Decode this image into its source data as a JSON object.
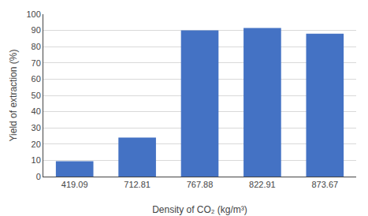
{
  "chart_data": {
    "type": "bar",
    "categories": [
      "419.09",
      "712.81",
      "767.88",
      "822.91",
      "873.67"
    ],
    "values": [
      9.5,
      24,
      90,
      91.5,
      88
    ],
    "color": "#4472C4",
    "xlabel": "Density of CO₂ (kg/m³)",
    "ylabel": "Yield of extraction (%)",
    "ylim": [
      0,
      100
    ],
    "yticks": [
      0,
      10,
      20,
      30,
      40,
      50,
      60,
      70,
      80,
      90,
      100
    ],
    "grid": true
  }
}
